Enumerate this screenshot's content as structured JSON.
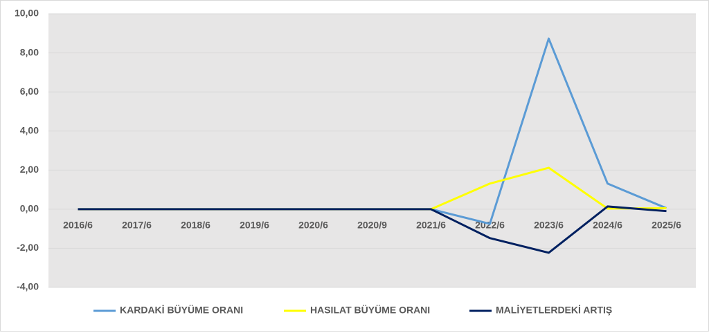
{
  "chart_data": {
    "type": "line",
    "categories": [
      "2016/6",
      "2017/6",
      "2018/6",
      "2019/6",
      "2020/6",
      "2020/9",
      "2021/6",
      "2022/6",
      "2023/6",
      "2024/6",
      "2025/6"
    ],
    "series": [
      {
        "name": "KARDAKİ BÜYÜME ORANI",
        "color": "#5b9bd5",
        "values": [
          0,
          0,
          0,
          0,
          0,
          0,
          0,
          -0.75,
          8.73,
          1.31,
          0.05
        ]
      },
      {
        "name": "HASILAT BÜYÜME ORANI",
        "color": "#ffff00",
        "values": [
          0,
          0,
          0,
          0,
          0,
          0,
          0,
          1.31,
          2.12,
          0.03,
          0.05
        ]
      },
      {
        "name": "MALİYETLERDEKİ ARTIŞ",
        "color": "#002060",
        "values": [
          0,
          0,
          0,
          0,
          0,
          0,
          0,
          -1.48,
          -2.23,
          0.14,
          -0.1
        ]
      }
    ],
    "ylim": [
      -4,
      10
    ],
    "yticks": [
      {
        "value": -4,
        "label": "-4,00"
      },
      {
        "value": -2,
        "label": "-2,00"
      },
      {
        "value": 0,
        "label": "0,00"
      },
      {
        "value": 2,
        "label": "2,00"
      },
      {
        "value": 4,
        "label": "4,00"
      },
      {
        "value": 6,
        "label": "6,00"
      },
      {
        "value": 8,
        "label": "8,00"
      },
      {
        "value": 10,
        "label": "10,00"
      }
    ],
    "grid": true,
    "legend": "bottom"
  }
}
